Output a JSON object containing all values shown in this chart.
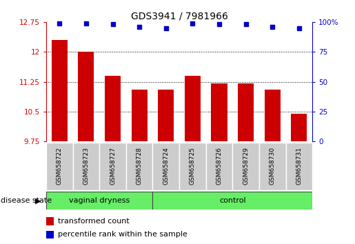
{
  "title": "GDS3941 / 7981966",
  "samples": [
    "GSM658722",
    "GSM658723",
    "GSM658727",
    "GSM658728",
    "GSM658724",
    "GSM658725",
    "GSM658726",
    "GSM658729",
    "GSM658730",
    "GSM658731"
  ],
  "bar_values": [
    12.3,
    12.0,
    11.4,
    11.05,
    11.05,
    11.4,
    11.2,
    11.2,
    11.05,
    10.45
  ],
  "dot_values": [
    99,
    99,
    98,
    96,
    95,
    99,
    98,
    98,
    96,
    95
  ],
  "bar_color": "#CC0000",
  "dot_color": "#0000CC",
  "ylim_left": [
    9.75,
    12.75
  ],
  "ylim_right": [
    0,
    100
  ],
  "yticks_left": [
    9.75,
    10.5,
    11.25,
    12.0,
    12.75
  ],
  "ytick_labels_left": [
    "9.75",
    "10.5",
    "11.25",
    "12",
    "12.75"
  ],
  "yticks_right": [
    0,
    25,
    50,
    75,
    100
  ],
  "ytick_labels_right": [
    "0",
    "25",
    "50",
    "75",
    "100%"
  ],
  "hgrid_lines": [
    12.0,
    11.25,
    10.5
  ],
  "group_label": "disease state",
  "vaginal_label": "vaginal dryness",
  "control_label": "control",
  "vaginal_count": 4,
  "control_count": 6,
  "legend_bar_label": "transformed count",
  "legend_dot_label": "percentile rank within the sample",
  "green_color": "#66EE66",
  "gray_color": "#CCCCCC",
  "bgcolor": "#ffffff"
}
